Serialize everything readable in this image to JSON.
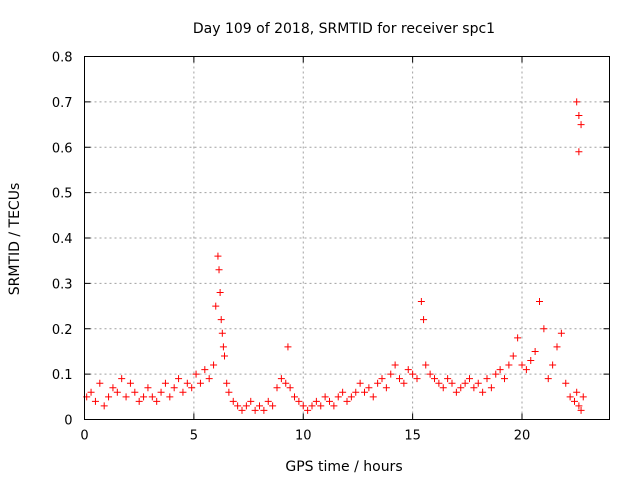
{
  "chart_data": {
    "type": "scatter",
    "title": "Day 109 of 2018, SRMTID for receiver spc1",
    "xlabel": "GPS time / hours",
    "ylabel": "SRMTID / TECUs",
    "xlim": [
      0,
      24
    ],
    "ylim": [
      0,
      0.8
    ],
    "xticks": [
      0,
      5,
      10,
      15,
      20
    ],
    "xtick_labels": [
      "0",
      "5",
      "10",
      "15",
      "20"
    ],
    "yticks": [
      0,
      0.1,
      0.2,
      0.3,
      0.4,
      0.5,
      0.6,
      0.7,
      0.8
    ],
    "ytick_labels": [
      "0",
      "0.1",
      "0.2",
      "0.3",
      "0.4",
      "0.5",
      "0.6",
      "0.7",
      "0.8"
    ],
    "grid": true,
    "marker": "+",
    "color": "#ff0000",
    "series": [
      {
        "name": "SRMTID",
        "x": [
          0.1,
          0.3,
          0.5,
          0.7,
          0.9,
          1.1,
          1.3,
          1.5,
          1.7,
          1.9,
          2.1,
          2.3,
          2.5,
          2.7,
          2.9,
          3.1,
          3.3,
          3.5,
          3.7,
          3.9,
          4.1,
          4.3,
          4.5,
          4.7,
          4.9,
          5.1,
          5.3,
          5.5,
          5.7,
          5.9,
          6.0,
          6.1,
          6.15,
          6.2,
          6.25,
          6.3,
          6.35,
          6.4,
          6.5,
          6.6,
          6.8,
          7.0,
          7.2,
          7.4,
          7.6,
          7.8,
          8.0,
          8.2,
          8.4,
          8.6,
          8.8,
          9.0,
          9.2,
          9.3,
          9.4,
          9.6,
          9.8,
          10.0,
          10.2,
          10.4,
          10.6,
          10.8,
          11.0,
          11.2,
          11.4,
          11.6,
          11.8,
          12.0,
          12.2,
          12.4,
          12.6,
          12.8,
          13.0,
          13.2,
          13.4,
          13.6,
          13.8,
          14.0,
          14.2,
          14.4,
          14.6,
          14.8,
          15.0,
          15.2,
          15.4,
          15.5,
          15.6,
          15.8,
          16.0,
          16.2,
          16.4,
          16.6,
          16.8,
          17.0,
          17.2,
          17.4,
          17.6,
          17.8,
          18.0,
          18.2,
          18.4,
          18.6,
          18.8,
          19.0,
          19.2,
          19.4,
          19.6,
          19.8,
          20.0,
          20.2,
          20.4,
          20.6,
          20.8,
          21.0,
          21.2,
          21.4,
          21.6,
          21.8,
          22.0,
          22.2,
          22.4,
          22.5,
          22.6,
          22.7,
          22.8,
          22.5,
          22.6,
          22.7,
          22.6
        ],
        "y": [
          0.05,
          0.06,
          0.04,
          0.08,
          0.03,
          0.05,
          0.07,
          0.06,
          0.09,
          0.05,
          0.08,
          0.06,
          0.04,
          0.05,
          0.07,
          0.05,
          0.04,
          0.06,
          0.08,
          0.05,
          0.07,
          0.09,
          0.06,
          0.08,
          0.07,
          0.1,
          0.08,
          0.11,
          0.09,
          0.12,
          0.25,
          0.36,
          0.33,
          0.28,
          0.22,
          0.19,
          0.16,
          0.14,
          0.08,
          0.06,
          0.04,
          0.03,
          0.02,
          0.03,
          0.04,
          0.02,
          0.03,
          0.02,
          0.04,
          0.03,
          0.07,
          0.09,
          0.08,
          0.16,
          0.07,
          0.05,
          0.04,
          0.03,
          0.02,
          0.03,
          0.04,
          0.03,
          0.05,
          0.04,
          0.03,
          0.05,
          0.06,
          0.04,
          0.05,
          0.06,
          0.08,
          0.06,
          0.07,
          0.05,
          0.08,
          0.09,
          0.07,
          0.1,
          0.12,
          0.09,
          0.08,
          0.11,
          0.1,
          0.09,
          0.26,
          0.22,
          0.12,
          0.1,
          0.09,
          0.08,
          0.07,
          0.09,
          0.08,
          0.06,
          0.07,
          0.08,
          0.09,
          0.07,
          0.08,
          0.06,
          0.09,
          0.07,
          0.1,
          0.11,
          0.09,
          0.12,
          0.14,
          0.18,
          0.12,
          0.11,
          0.13,
          0.15,
          0.26,
          0.2,
          0.09,
          0.12,
          0.16,
          0.19,
          0.08,
          0.05,
          0.04,
          0.06,
          0.03,
          0.02,
          0.05,
          0.7,
          0.67,
          0.65,
          0.59
        ]
      }
    ]
  }
}
